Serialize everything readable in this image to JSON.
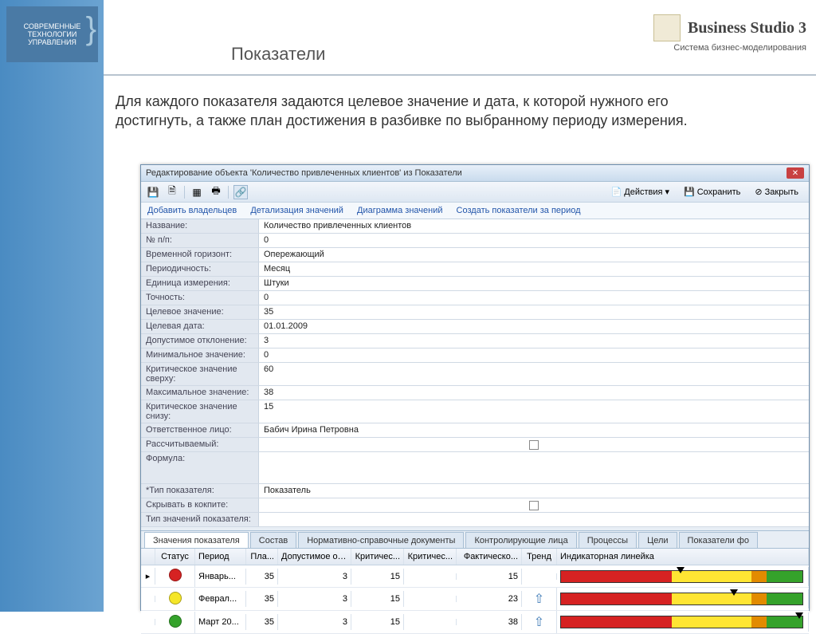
{
  "slide": {
    "logo_line1": "СОВРЕМЕННЫЕ",
    "logo_line2": "ТЕХНОЛОГИИ",
    "logo_line3": "УПРАВЛЕНИЯ",
    "page_title": "Показатели",
    "brand_title": "Business Studio 3",
    "brand_subtitle": "Система бизнес-моделирования",
    "description": "Для каждого показателя задаются целевое значение и дата, к которой нужного его достигнуть, а также план достижения в разбивке по выбранному периоду измерения."
  },
  "window": {
    "title": "Редактирование объекта 'Количество привлеченных клиентов' из Показатели",
    "toolbar": {
      "actions": "Действия",
      "save": "Сохранить",
      "close": "Закрыть"
    },
    "links": {
      "add_owners": "Добавить владельцев",
      "detail_values": "Детализация значений",
      "values_chart": "Диаграмма значений",
      "create_period": "Создать показатели за период"
    },
    "fields": [
      {
        "label": "Название:",
        "value": "Количество привлеченных клиентов"
      },
      {
        "label": "№ п/п:",
        "value": "0"
      },
      {
        "label": "Временной горизонт:",
        "value": "Опережающий"
      },
      {
        "label": "Периодичность:",
        "value": "Месяц"
      },
      {
        "label": "Единица измерения:",
        "value": "Штуки"
      },
      {
        "label": "Точность:",
        "value": "0"
      },
      {
        "label": "Целевое значение:",
        "value": "35"
      },
      {
        "label": "Целевая дата:",
        "value": "01.01.2009"
      },
      {
        "label": "Допустимое отклонение:",
        "value": "3"
      },
      {
        "label": "Минимальное значение:",
        "value": "0"
      },
      {
        "label": "Критическое значение сверху:",
        "value": "60"
      },
      {
        "label": "Максимальное значение:",
        "value": "38"
      },
      {
        "label": "Критическое значение снизу:",
        "value": "15"
      },
      {
        "label": "Ответственное лицо:",
        "value": "Бабич Ирина Петровна"
      },
      {
        "label": "Рассчитываемый:",
        "value": "",
        "checkbox": true
      },
      {
        "label": "Формула:",
        "value": "",
        "tall": true
      },
      {
        "label": "*Тип показателя:",
        "value": "Показатель"
      },
      {
        "label": "Скрывать в кокпите:",
        "value": "",
        "checkbox": true
      },
      {
        "label": "Тип значений показателя:",
        "value": ""
      }
    ],
    "tabs": [
      "Значения показателя",
      "Состав",
      "Нормативно-справочные документы",
      "Контролирующие лица",
      "Процессы",
      "Цели",
      "Показатели фо"
    ],
    "active_tab": 0,
    "grid": {
      "headers": {
        "status": "Статус",
        "period": "Период",
        "plan": "Пла...",
        "deviation": "Допустимое от...",
        "critical": "Критичес...",
        "critical2": "Критичес...",
        "factual": "Фактическо...",
        "trend": "Тренд",
        "indicator": "Индикаторная линейка"
      },
      "rows": [
        {
          "status_color": "#d62222",
          "period": "Январь...",
          "plan": "35",
          "deviation": "3",
          "critical": "15",
          "critical2": "",
          "factual": "15",
          "trend": "",
          "marker_pos": 0.48,
          "segments": [
            [
              "#d62222",
              0.46
            ],
            [
              "#ffe533",
              0.33
            ],
            [
              "#e28b00",
              0.06
            ],
            [
              "#35a22b",
              0.15
            ]
          ]
        },
        {
          "status_color": "#f5e628",
          "period": "Феврал...",
          "plan": "35",
          "deviation": "3",
          "critical": "15",
          "critical2": "",
          "factual": "23",
          "trend": "up",
          "marker_pos": 0.7,
          "segments": [
            [
              "#d62222",
              0.46
            ],
            [
              "#ffe533",
              0.33
            ],
            [
              "#e28b00",
              0.06
            ],
            [
              "#35a22b",
              0.15
            ]
          ]
        },
        {
          "status_color": "#35a22b",
          "period": "Март 20...",
          "plan": "35",
          "deviation": "3",
          "critical": "15",
          "critical2": "",
          "factual": "38",
          "trend": "up",
          "marker_pos": 0.97,
          "segments": [
            [
              "#d62222",
              0.46
            ],
            [
              "#ffe533",
              0.33
            ],
            [
              "#e28b00",
              0.06
            ],
            [
              "#35a22b",
              0.15
            ]
          ]
        }
      ]
    }
  }
}
